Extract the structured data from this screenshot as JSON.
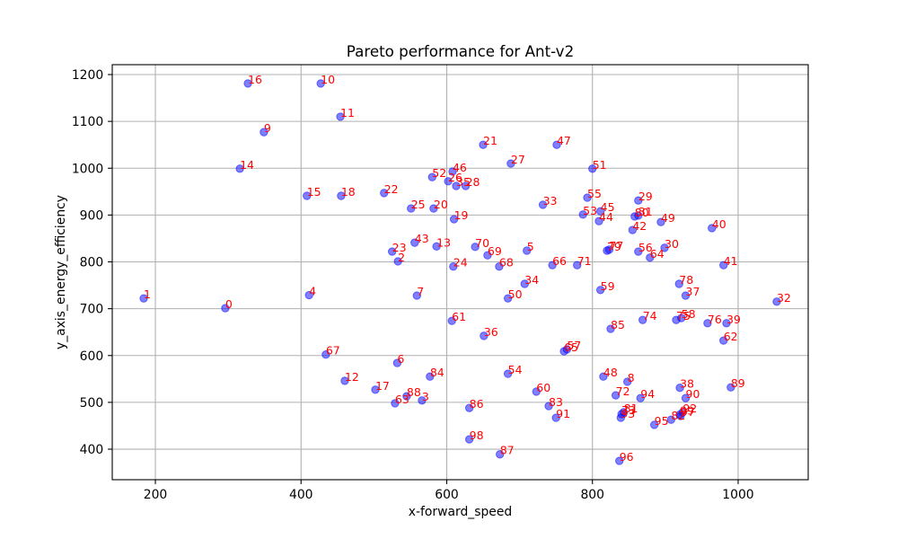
{
  "chart_data": {
    "type": "scatter",
    "title": "Pareto performance for Ant-v2",
    "xlabel": "x-forward_speed",
    "ylabel": "y_axis_energy_efficiency",
    "xlim": [
      140.8,
      1096.2
    ],
    "ylim": [
      334.8,
      1221.1
    ],
    "xticks": [
      200,
      400,
      600,
      800,
      1000
    ],
    "yticks": [
      400,
      500,
      600,
      700,
      800,
      900,
      1000,
      1100,
      1200
    ],
    "grid": true,
    "grid_color": "#b0b0b0",
    "point_color": "#0000ff",
    "point_alpha": 0.5,
    "label_color": "#ff0000",
    "points": [
      {
        "label": "0",
        "x": 296,
        "y": 701
      },
      {
        "label": "1",
        "x": 184,
        "y": 722
      },
      {
        "label": "2",
        "x": 533,
        "y": 801
      },
      {
        "label": "3",
        "x": 566,
        "y": 504
      },
      {
        "label": "4",
        "x": 411,
        "y": 729
      },
      {
        "label": "5",
        "x": 710,
        "y": 824
      },
      {
        "label": "6",
        "x": 532,
        "y": 584
      },
      {
        "label": "7",
        "x": 559,
        "y": 728
      },
      {
        "label": "8",
        "x": 848,
        "y": 544
      },
      {
        "label": "9",
        "x": 349,
        "y": 1077
      },
      {
        "label": "10",
        "x": 427,
        "y": 1181
      },
      {
        "label": "11",
        "x": 454,
        "y": 1110
      },
      {
        "label": "12",
        "x": 460,
        "y": 546
      },
      {
        "label": "13",
        "x": 586,
        "y": 833
      },
      {
        "label": "14",
        "x": 316,
        "y": 999
      },
      {
        "label": "15",
        "x": 408,
        "y": 941
      },
      {
        "label": "16",
        "x": 327,
        "y": 1181
      },
      {
        "label": "17",
        "x": 502,
        "y": 527
      },
      {
        "label": "18",
        "x": 455,
        "y": 941
      },
      {
        "label": "19",
        "x": 610,
        "y": 891
      },
      {
        "label": "20",
        "x": 582,
        "y": 914
      },
      {
        "label": "21",
        "x": 650,
        "y": 1050
      },
      {
        "label": "22",
        "x": 514,
        "y": 947
      },
      {
        "label": "23",
        "x": 525,
        "y": 822
      },
      {
        "label": "24",
        "x": 609,
        "y": 790
      },
      {
        "label": "25",
        "x": 551,
        "y": 914
      },
      {
        "label": "26",
        "x": 602,
        "y": 972
      },
      {
        "label": "27",
        "x": 688,
        "y": 1010
      },
      {
        "label": "28",
        "x": 626,
        "y": 962
      },
      {
        "label": "29",
        "x": 863,
        "y": 931
      },
      {
        "label": "30",
        "x": 899,
        "y": 830
      },
      {
        "label": "31",
        "x": 863,
        "y": 899
      },
      {
        "label": "32",
        "x": 1053,
        "y": 715
      },
      {
        "label": "33",
        "x": 732,
        "y": 922
      },
      {
        "label": "34",
        "x": 707,
        "y": 753
      },
      {
        "label": "35",
        "x": 613,
        "y": 962
      },
      {
        "label": "36",
        "x": 651,
        "y": 642
      },
      {
        "label": "37",
        "x": 928,
        "y": 728
      },
      {
        "label": "38",
        "x": 920,
        "y": 531
      },
      {
        "label": "39",
        "x": 984,
        "y": 669
      },
      {
        "label": "40",
        "x": 964,
        "y": 872
      },
      {
        "label": "41",
        "x": 980,
        "y": 793
      },
      {
        "label": "42",
        "x": 855,
        "y": 868
      },
      {
        "label": "43",
        "x": 556,
        "y": 841
      },
      {
        "label": "44",
        "x": 809,
        "y": 887
      },
      {
        "label": "45",
        "x": 811,
        "y": 908
      },
      {
        "label": "46",
        "x": 608,
        "y": 993
      },
      {
        "label": "47",
        "x": 751,
        "y": 1050
      },
      {
        "label": "48",
        "x": 815,
        "y": 555
      },
      {
        "label": "49",
        "x": 894,
        "y": 885
      },
      {
        "label": "50",
        "x": 684,
        "y": 722
      },
      {
        "label": "51",
        "x": 800,
        "y": 999
      },
      {
        "label": "52",
        "x": 580,
        "y": 981
      },
      {
        "label": "53",
        "x": 787,
        "y": 901
      },
      {
        "label": "54",
        "x": 684,
        "y": 561
      },
      {
        "label": "55",
        "x": 793,
        "y": 937
      },
      {
        "label": "56",
        "x": 863,
        "y": 822
      },
      {
        "label": "57",
        "x": 765,
        "y": 613
      },
      {
        "label": "58",
        "x": 922,
        "y": 680
      },
      {
        "label": "59",
        "x": 811,
        "y": 740
      },
      {
        "label": "60",
        "x": 723,
        "y": 523
      },
      {
        "label": "61",
        "x": 607,
        "y": 674
      },
      {
        "label": "62",
        "x": 980,
        "y": 632
      },
      {
        "label": "63",
        "x": 529,
        "y": 498
      },
      {
        "label": "64",
        "x": 879,
        "y": 809
      },
      {
        "label": "65",
        "x": 761,
        "y": 609
      },
      {
        "label": "66",
        "x": 745,
        "y": 793
      },
      {
        "label": "67",
        "x": 434,
        "y": 602
      },
      {
        "label": "68",
        "x": 672,
        "y": 790
      },
      {
        "label": "69",
        "x": 656,
        "y": 814
      },
      {
        "label": "70",
        "x": 639,
        "y": 832
      },
      {
        "label": "71",
        "x": 779,
        "y": 793
      },
      {
        "label": "72",
        "x": 832,
        "y": 515
      },
      {
        "label": "73",
        "x": 840,
        "y": 475
      },
      {
        "label": "74",
        "x": 869,
        "y": 676
      },
      {
        "label": "75",
        "x": 915,
        "y": 676
      },
      {
        "label": "76",
        "x": 958,
        "y": 669
      },
      {
        "label": "77",
        "x": 823,
        "y": 826
      },
      {
        "label": "78",
        "x": 919,
        "y": 753
      },
      {
        "label": "79",
        "x": 820,
        "y": 824
      },
      {
        "label": "80",
        "x": 858,
        "y": 897
      },
      {
        "label": "81",
        "x": 843,
        "y": 479
      },
      {
        "label": "82",
        "x": 908,
        "y": 463
      },
      {
        "label": "83",
        "x": 740,
        "y": 492
      },
      {
        "label": "84",
        "x": 577,
        "y": 555
      },
      {
        "label": "85",
        "x": 825,
        "y": 657
      },
      {
        "label": "86",
        "x": 631,
        "y": 488
      },
      {
        "label": "87",
        "x": 673,
        "y": 389
      },
      {
        "label": "88",
        "x": 545,
        "y": 513
      },
      {
        "label": "89",
        "x": 990,
        "y": 532
      },
      {
        "label": "90",
        "x": 928,
        "y": 509
      },
      {
        "label": "91",
        "x": 750,
        "y": 467
      },
      {
        "label": "92",
        "x": 924,
        "y": 479
      },
      {
        "label": "93",
        "x": 839,
        "y": 467
      },
      {
        "label": "94",
        "x": 866,
        "y": 509
      },
      {
        "label": "95",
        "x": 885,
        "y": 452
      },
      {
        "label": "96",
        "x": 837,
        "y": 375
      },
      {
        "label": "97",
        "x": 921,
        "y": 471
      },
      {
        "label": "98",
        "x": 631,
        "y": 421
      },
      {
        "label": "99",
        "x": 920,
        "y": 474
      }
    ]
  }
}
